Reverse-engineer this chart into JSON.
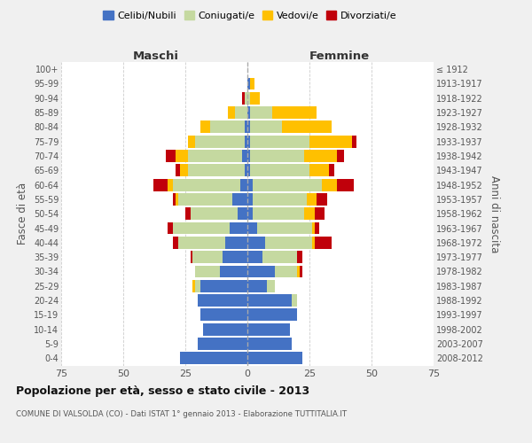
{
  "age_groups": [
    "0-4",
    "5-9",
    "10-14",
    "15-19",
    "20-24",
    "25-29",
    "30-34",
    "35-39",
    "40-44",
    "45-49",
    "50-54",
    "55-59",
    "60-64",
    "65-69",
    "70-74",
    "75-79",
    "80-84",
    "85-89",
    "90-94",
    "95-99",
    "100+"
  ],
  "birth_years": [
    "2008-2012",
    "2003-2007",
    "1998-2002",
    "1993-1997",
    "1988-1992",
    "1983-1987",
    "1978-1982",
    "1973-1977",
    "1968-1972",
    "1963-1967",
    "1958-1962",
    "1953-1957",
    "1948-1952",
    "1943-1947",
    "1938-1942",
    "1933-1937",
    "1928-1932",
    "1923-1927",
    "1918-1922",
    "1913-1917",
    "≤ 1912"
  ],
  "male_celibe": [
    27,
    20,
    18,
    19,
    20,
    19,
    11,
    10,
    9,
    7,
    4,
    6,
    3,
    1,
    2,
    1,
    1,
    0,
    0,
    0,
    0
  ],
  "male_coniugato": [
    0,
    0,
    0,
    0,
    0,
    2,
    10,
    12,
    19,
    23,
    19,
    22,
    27,
    23,
    22,
    20,
    14,
    5,
    1,
    0,
    0
  ],
  "male_vedovo": [
    0,
    0,
    0,
    0,
    0,
    1,
    0,
    0,
    0,
    0,
    0,
    1,
    2,
    3,
    5,
    3,
    4,
    3,
    0,
    0,
    0
  ],
  "male_divorziato": [
    0,
    0,
    0,
    0,
    0,
    0,
    0,
    1,
    2,
    2,
    2,
    1,
    6,
    2,
    4,
    0,
    0,
    0,
    1,
    0,
    0
  ],
  "female_celibe": [
    22,
    18,
    17,
    20,
    18,
    8,
    11,
    6,
    7,
    4,
    2,
    2,
    2,
    1,
    1,
    1,
    1,
    1,
    0,
    1,
    0
  ],
  "female_coniugato": [
    0,
    0,
    0,
    0,
    2,
    3,
    9,
    14,
    19,
    22,
    21,
    22,
    28,
    24,
    22,
    24,
    13,
    9,
    1,
    0,
    0
  ],
  "female_vedovo": [
    0,
    0,
    0,
    0,
    0,
    0,
    1,
    0,
    1,
    1,
    4,
    4,
    6,
    8,
    13,
    17,
    20,
    18,
    4,
    2,
    0
  ],
  "female_divorziato": [
    0,
    0,
    0,
    0,
    0,
    0,
    1,
    2,
    7,
    2,
    4,
    4,
    7,
    2,
    3,
    2,
    0,
    0,
    0,
    0,
    0
  ],
  "colors": {
    "celibe": "#4472c4",
    "coniugato": "#c5d9a0",
    "vedovo": "#ffc000",
    "divorziato": "#c0000b"
  },
  "title": "Popolazione per età, sesso e stato civile - 2013",
  "subtitle": "COMUNE DI VALSOLDA (CO) - Dati ISTAT 1° gennaio 2013 - Elaborazione TUTTITALIA.IT",
  "xlabel_left": "Maschi",
  "xlabel_right": "Femmine",
  "ylabel_left": "Fasce di età",
  "ylabel_right": "Anni di nascita",
  "xlim": 75,
  "bg_color": "#f0f0f0",
  "plot_bg": "#ffffff",
  "grid_color": "#cccccc"
}
